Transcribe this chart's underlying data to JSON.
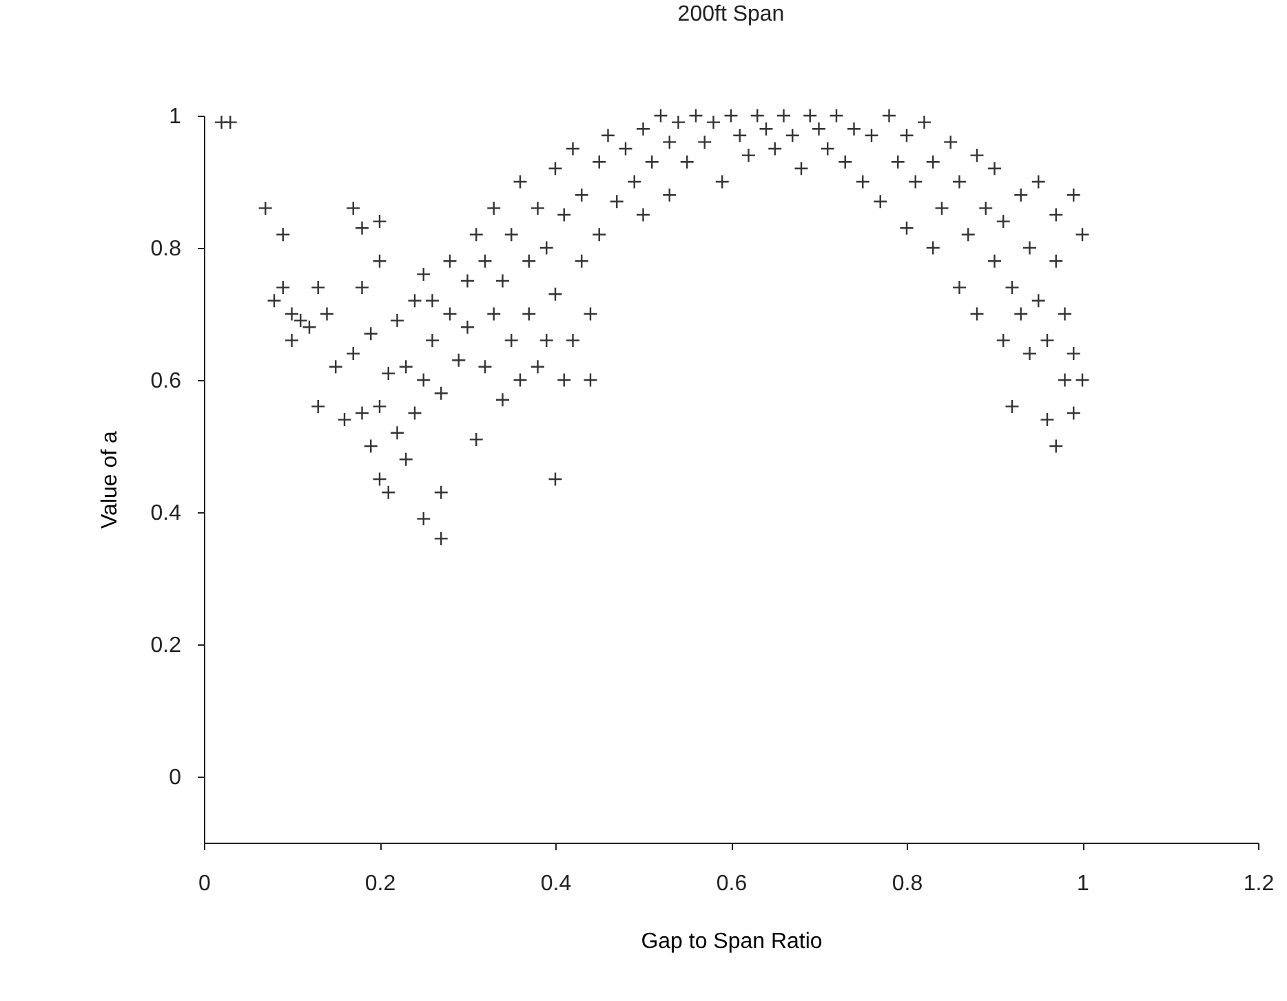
{
  "chart_data": {
    "type": "scatter",
    "title": "200ft Span",
    "xlabel": "Gap to Span Ratio",
    "ylabel": "Value of a",
    "xlim": [
      0,
      1.2
    ],
    "xticks": [
      0,
      0.2,
      0.4,
      0.6,
      0.8,
      1,
      1.2
    ],
    "ylim": [
      -0.1,
      1
    ],
    "yticks": [
      0,
      0.2,
      0.4,
      0.6,
      0.8,
      1
    ],
    "grid": false,
    "marker": "cross",
    "series": [
      {
        "color": "#333333",
        "x": [
          0.02,
          0.03,
          0.07,
          0.08,
          0.09,
          0.09,
          0.1,
          0.1,
          0.11,
          0.12,
          0.13,
          0.13,
          0.14,
          0.15,
          0.16,
          0.17,
          0.17,
          0.18,
          0.18,
          0.18,
          0.19,
          0.19,
          0.2,
          0.2,
          0.2,
          0.2,
          0.21,
          0.21,
          0.22,
          0.22,
          0.23,
          0.23,
          0.24,
          0.24,
          0.25,
          0.25,
          0.25,
          0.26,
          0.26,
          0.27,
          0.27,
          0.27,
          0.28,
          0.28,
          0.29,
          0.3,
          0.3,
          0.31,
          0.31,
          0.32,
          0.32,
          0.33,
          0.33,
          0.34,
          0.34,
          0.35,
          0.35,
          0.36,
          0.36,
          0.37,
          0.37,
          0.38,
          0.38,
          0.39,
          0.39,
          0.4,
          0.4,
          0.4,
          0.41,
          0.41,
          0.42,
          0.42,
          0.43,
          0.43,
          0.44,
          0.44,
          0.45,
          0.45,
          0.46,
          0.47,
          0.48,
          0.49,
          0.5,
          0.5,
          0.51,
          0.52,
          0.53,
          0.53,
          0.54,
          0.55,
          0.56,
          0.57,
          0.58,
          0.59,
          0.6,
          0.61,
          0.62,
          0.63,
          0.64,
          0.65,
          0.66,
          0.67,
          0.68,
          0.69,
          0.7,
          0.71,
          0.72,
          0.73,
          0.74,
          0.75,
          0.76,
          0.77,
          0.78,
          0.79,
          0.8,
          0.8,
          0.81,
          0.82,
          0.83,
          0.83,
          0.84,
          0.85,
          0.86,
          0.86,
          0.87,
          0.88,
          0.88,
          0.89,
          0.9,
          0.9,
          0.91,
          0.91,
          0.92,
          0.92,
          0.93,
          0.93,
          0.94,
          0.94,
          0.95,
          0.95,
          0.96,
          0.96,
          0.97,
          0.97,
          0.97,
          0.98,
          0.98,
          0.99,
          0.99,
          0.99,
          1.0,
          1.0
        ],
        "values": [
          0.99,
          0.99,
          0.86,
          0.72,
          0.82,
          0.74,
          0.7,
          0.66,
          0.69,
          0.68,
          0.56,
          0.74,
          0.7,
          0.62,
          0.54,
          0.86,
          0.64,
          0.55,
          0.74,
          0.83,
          0.5,
          0.67,
          0.45,
          0.56,
          0.84,
          0.78,
          0.43,
          0.61,
          0.52,
          0.69,
          0.48,
          0.62,
          0.55,
          0.72,
          0.39,
          0.6,
          0.76,
          0.66,
          0.72,
          0.43,
          0.36,
          0.58,
          0.7,
          0.78,
          0.63,
          0.75,
          0.68,
          0.51,
          0.82,
          0.78,
          0.62,
          0.7,
          0.86,
          0.75,
          0.57,
          0.82,
          0.66,
          0.9,
          0.6,
          0.78,
          0.7,
          0.86,
          0.62,
          0.8,
          0.66,
          0.45,
          0.92,
          0.73,
          0.85,
          0.6,
          0.66,
          0.95,
          0.78,
          0.88,
          0.7,
          0.6,
          0.93,
          0.82,
          0.97,
          0.87,
          0.95,
          0.9,
          0.98,
          0.85,
          0.93,
          1.0,
          0.96,
          0.88,
          0.99,
          0.93,
          1.0,
          0.96,
          0.99,
          0.9,
          1.0,
          0.97,
          0.94,
          1.0,
          0.98,
          0.95,
          1.0,
          0.97,
          0.92,
          1.0,
          0.98,
          0.95,
          1.0,
          0.93,
          0.98,
          0.9,
          0.97,
          0.87,
          1.0,
          0.93,
          0.83,
          0.97,
          0.9,
          0.99,
          0.8,
          0.93,
          0.86,
          0.96,
          0.74,
          0.9,
          0.82,
          0.94,
          0.7,
          0.86,
          0.78,
          0.92,
          0.66,
          0.84,
          0.56,
          0.74,
          0.88,
          0.7,
          0.64,
          0.8,
          0.72,
          0.9,
          0.54,
          0.66,
          0.5,
          0.78,
          0.85,
          0.6,
          0.7,
          0.88,
          0.55,
          0.64,
          0.6,
          0.82
        ]
      }
    ]
  }
}
